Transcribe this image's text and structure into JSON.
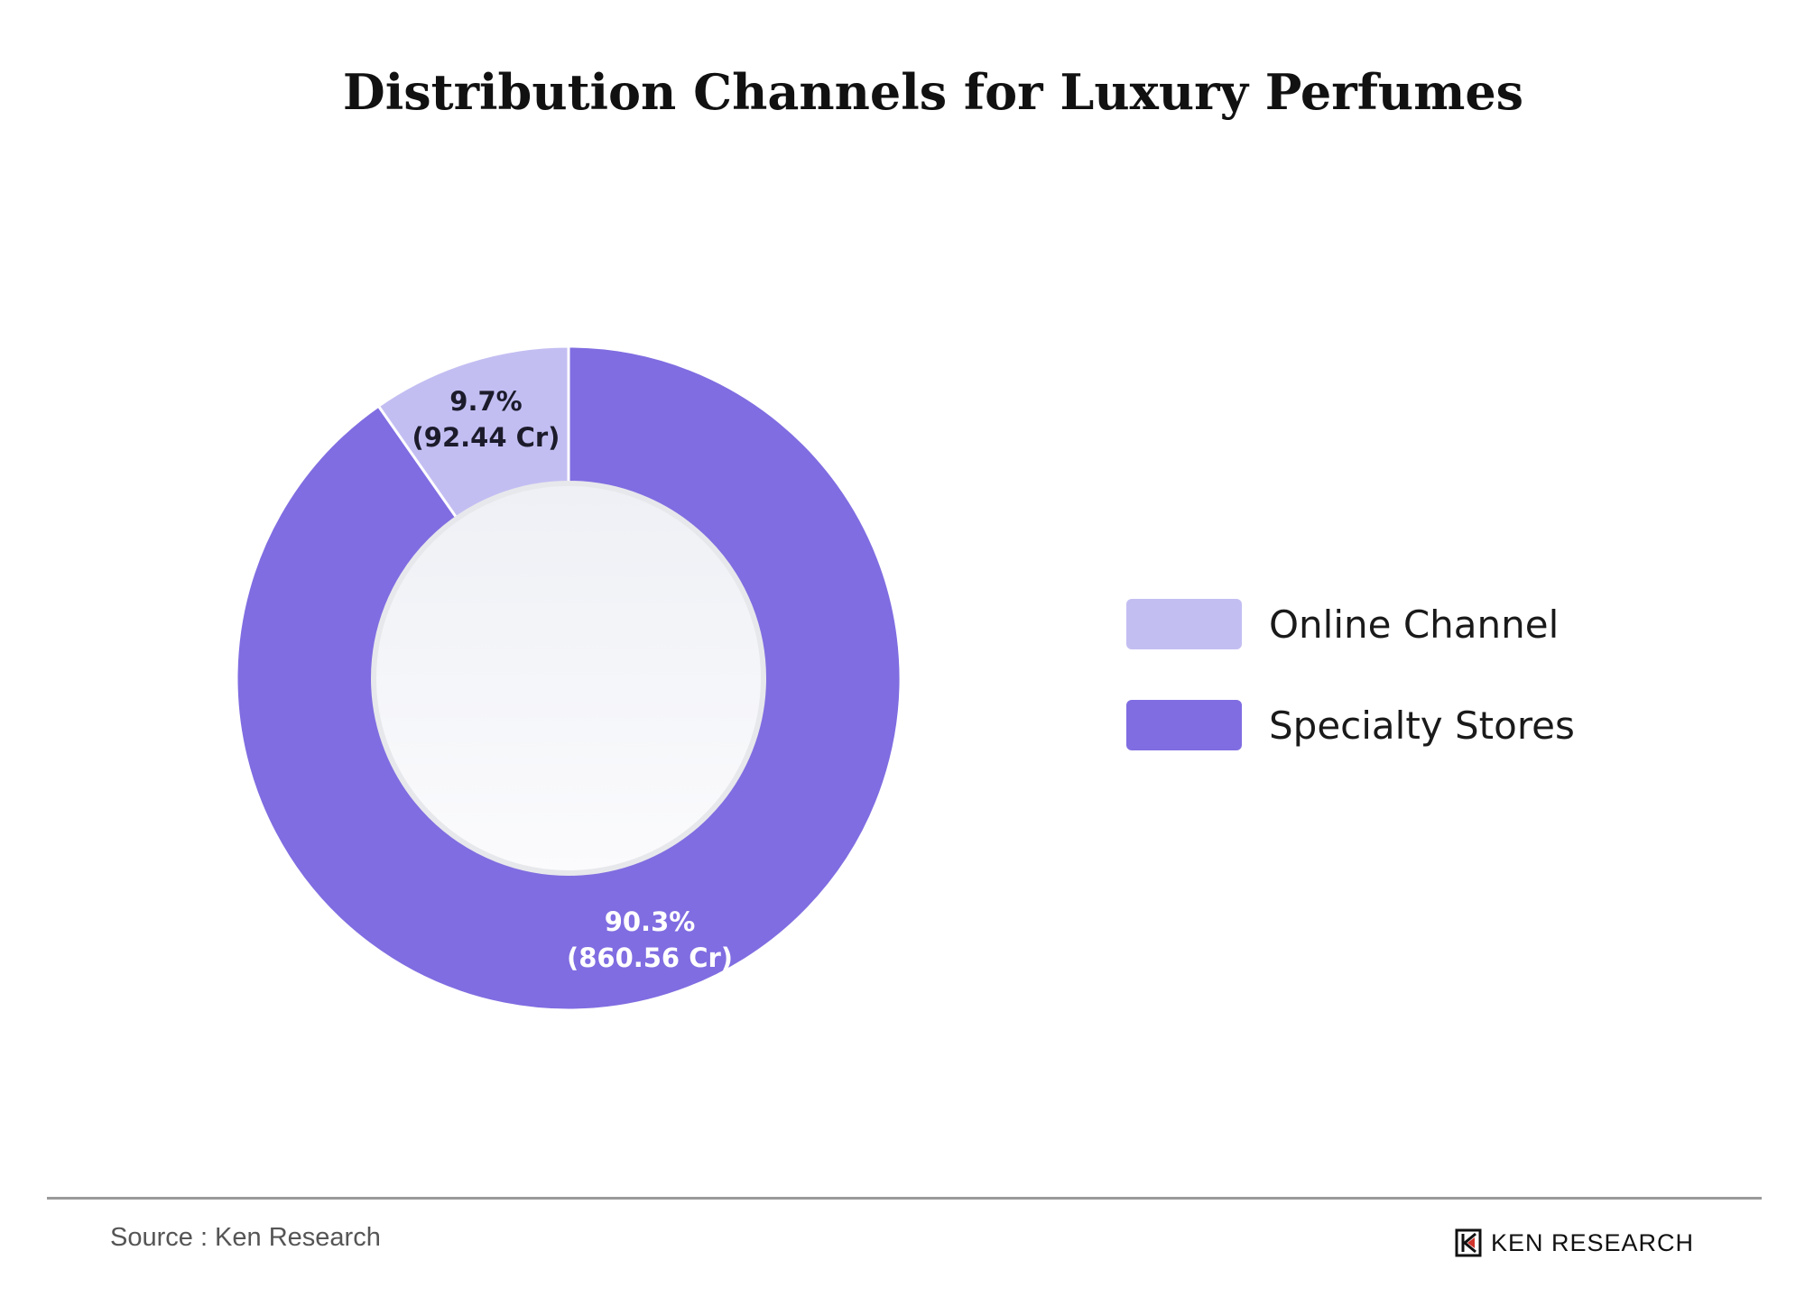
{
  "chart_data": {
    "type": "pie",
    "title": "Distribution Channels for Luxury Perfumes",
    "categories": [
      "Online Channel",
      "Specialty Stores"
    ],
    "values": [
      9.7,
      90.3
    ],
    "value_labels": [
      "9.7%",
      "90.3%"
    ],
    "amount_labels": [
      "(92.44 Cr)",
      "(860.56 Cr)"
    ],
    "colors": [
      "#c3bef2",
      "#806de1"
    ],
    "label_colors": [
      "#1b1b2b",
      "#ffffff"
    ],
    "hole": true,
    "legend": "right"
  },
  "footer": {
    "source": "Source : Ken Research",
    "brand": "KEN RESEARCH"
  },
  "icons": {
    "brand_logo": "ken-research-logo-icon"
  }
}
